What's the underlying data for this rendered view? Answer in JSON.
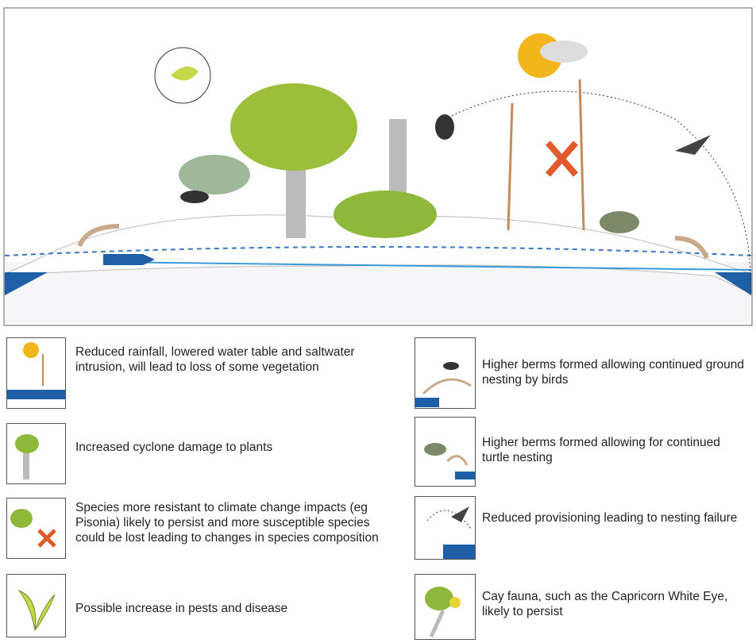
{
  "legend": {
    "items": [
      {
        "text": "Reduced rainfall, lowered water table and saltwater intrusion, will lead to loss of some vegetation"
      },
      {
        "text": "Increased cyclone damage to plants"
      },
      {
        "text": "Species more resistant to climate change impacts (eg Pisonia) likely to persist and more susceptible species could be lost leading to changes in species composition"
      },
      {
        "text": "Possible increase in pests and disease"
      },
      {
        "text": "Higher berms formed allowing continued ground nesting by birds"
      },
      {
        "text": "Higher berms formed allowing for continued turtle nesting"
      },
      {
        "text": "Reduced provisioning leading to nesting failure"
      },
      {
        "text": "Cay fauna, such as the Capricorn White Eye, likely to persist"
      }
    ]
  }
}
